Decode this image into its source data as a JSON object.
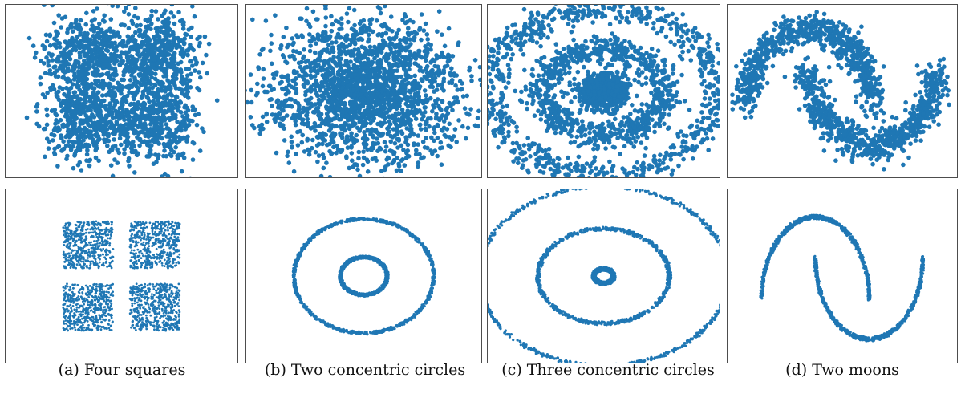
{
  "figure": {
    "point_color": "#1f77b4",
    "frame_color": "#4d4d4d",
    "captions": [
      "(a) Four squares",
      "(b) Two concentric circles",
      "(c) Three concentric circles",
      "(d) Two moons"
    ]
  },
  "chart_data": [
    {
      "type": "scatter",
      "subplot": "four-squares-noisy",
      "title": "",
      "xlabel": "",
      "ylabel": "",
      "grid": false,
      "axes_ticks": false,
      "centers": [
        [
          -1,
          1
        ],
        [
          1,
          1
        ],
        [
          -1,
          -1
        ],
        [
          1,
          -1
        ]
      ],
      "square_half_width": 0.75,
      "noise_std": 0.45,
      "n_points": 2000
    },
    {
      "type": "scatter",
      "subplot": "two-circles-noisy",
      "title": "",
      "xlabel": "",
      "ylabel": "",
      "grid": false,
      "axes_ticks": false,
      "radii": [
        1,
        3
      ],
      "noise_std": 0.9,
      "n_points": 2000
    },
    {
      "type": "scatter",
      "subplot": "three-circles-noisy",
      "title": "",
      "xlabel": "",
      "ylabel": "",
      "grid": false,
      "axes_ticks": false,
      "radii": [
        0.3,
        2,
        3.8
      ],
      "noise_std": 0.32,
      "n_points": 2400
    },
    {
      "type": "scatter",
      "subplot": "two-moons-noisy",
      "title": "",
      "xlabel": "",
      "ylabel": "",
      "grid": false,
      "axes_ticks": false,
      "moons": [
        {
          "center": [
            0,
            0
          ],
          "radius": 1,
          "half": "upper"
        },
        {
          "center": [
            1,
            0.5
          ],
          "radius": 1,
          "half": "lower"
        }
      ],
      "noise_std": 0.11,
      "n_points": 1500
    },
    {
      "type": "scatter",
      "subplot": "four-squares-clean",
      "title": "",
      "xlabel": "",
      "ylabel": "",
      "grid": false,
      "axes_ticks": false,
      "centers": [
        [
          -1,
          1
        ],
        [
          1,
          1
        ],
        [
          -1,
          -1
        ],
        [
          1,
          -1
        ]
      ],
      "square_half_width": 0.75,
      "n_points": 2000
    },
    {
      "type": "scatter",
      "subplot": "two-circles-clean",
      "title": "",
      "xlabel": "",
      "ylabel": "",
      "grid": false,
      "axes_ticks": false,
      "radii": [
        1,
        3
      ],
      "n_points": 2000
    },
    {
      "type": "scatter",
      "subplot": "three-circles-clean",
      "title": "",
      "xlabel": "",
      "ylabel": "",
      "grid": false,
      "axes_ticks": false,
      "radii": [
        0.3,
        2,
        3.8
      ],
      "n_points": 2400
    },
    {
      "type": "scatter",
      "subplot": "two-moons-clean",
      "title": "",
      "xlabel": "",
      "ylabel": "",
      "grid": false,
      "axes_ticks": false,
      "moons": [
        {
          "center": [
            0,
            0
          ],
          "radius": 1,
          "half": "upper"
        },
        {
          "center": [
            1,
            0.5
          ],
          "radius": 1,
          "half": "lower"
        }
      ],
      "n_points": 1500
    }
  ]
}
